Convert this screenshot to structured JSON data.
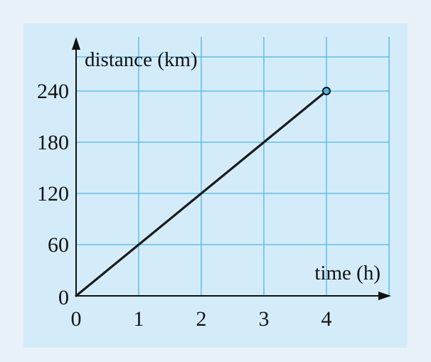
{
  "chart_data": {
    "type": "line",
    "xlabel": "time (h)",
    "ylabel": "distance (km)",
    "x_ticks": [
      "0",
      "1",
      "2",
      "3",
      "4"
    ],
    "y_ticks": [
      "0",
      "60",
      "120",
      "180",
      "240"
    ],
    "xlim": [
      0,
      5
    ],
    "ylim": [
      0,
      280
    ],
    "grid": true,
    "series": [
      {
        "x": [
          0,
          4
        ],
        "y": [
          0,
          240
        ],
        "end_marker": true
      }
    ],
    "colors": {
      "panel": "#d4ecf9",
      "grid": "#4db6e7",
      "line": "#1a1a1a",
      "marker_fill": "#46b8e6"
    }
  }
}
